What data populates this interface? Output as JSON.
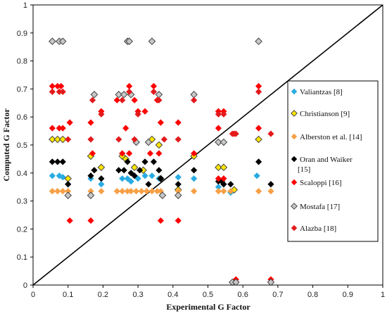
{
  "chart_data": {
    "type": "scatter",
    "xlabel": "Experimental G Factor",
    "ylabel": "Computed G Factor",
    "xlim": [
      0,
      1
    ],
    "ylim": [
      0,
      1
    ],
    "x_ticks": [
      "0",
      "0.1",
      "0.2",
      "0.3",
      "0.4",
      "0.5",
      "0.6",
      "0.7",
      "0.8",
      "0.9",
      "1"
    ],
    "y_ticks": [
      "0",
      "0.1",
      "0.2",
      "0.3",
      "0.4",
      "0.5",
      "0.6",
      "0.7",
      "0.8",
      "0.9",
      "1"
    ],
    "grid": false,
    "legend_position": "right",
    "reference_line": "y = x",
    "series": [
      {
        "name": "Valiantzas [8]",
        "marker": "diamond",
        "color": "#29abe2",
        "points": [
          [
            0.055,
            0.39
          ],
          [
            0.075,
            0.39
          ],
          [
            0.085,
            0.385
          ],
          [
            0.1,
            0.36
          ],
          [
            0.165,
            0.38
          ],
          [
            0.195,
            0.36
          ],
          [
            0.255,
            0.38
          ],
          [
            0.27,
            0.38
          ],
          [
            0.28,
            0.37
          ],
          [
            0.3,
            0.38
          ],
          [
            0.32,
            0.39
          ],
          [
            0.34,
            0.39
          ],
          [
            0.36,
            0.38
          ],
          [
            0.415,
            0.385
          ],
          [
            0.46,
            0.38
          ],
          [
            0.53,
            0.35
          ],
          [
            0.545,
            0.36
          ],
          [
            0.565,
            0.33
          ],
          [
            0.64,
            0.39
          ]
        ]
      },
      {
        "name": "Christianson [9]",
        "marker": "diamond",
        "color": "#ffe600",
        "points": [
          [
            0.055,
            0.52
          ],
          [
            0.07,
            0.52
          ],
          [
            0.085,
            0.52
          ],
          [
            0.1,
            0.38
          ],
          [
            0.165,
            0.46
          ],
          [
            0.195,
            0.42
          ],
          [
            0.255,
            0.46
          ],
          [
            0.265,
            0.45
          ],
          [
            0.29,
            0.42
          ],
          [
            0.315,
            0.41
          ],
          [
            0.34,
            0.52
          ],
          [
            0.36,
            0.5
          ],
          [
            0.365,
            0.38
          ],
          [
            0.415,
            0.34
          ],
          [
            0.46,
            0.46
          ],
          [
            0.53,
            0.42
          ],
          [
            0.545,
            0.42
          ],
          [
            0.575,
            0.34
          ],
          [
            0.645,
            0.52
          ]
        ]
      },
      {
        "name": "Alberston et al. [14]",
        "marker": "diamond",
        "color": "#f7a046",
        "points": [
          [
            0.055,
            0.335
          ],
          [
            0.07,
            0.335
          ],
          [
            0.085,
            0.335
          ],
          [
            0.1,
            0.335
          ],
          [
            0.165,
            0.335
          ],
          [
            0.195,
            0.335
          ],
          [
            0.24,
            0.335
          ],
          [
            0.255,
            0.335
          ],
          [
            0.27,
            0.335
          ],
          [
            0.28,
            0.335
          ],
          [
            0.295,
            0.335
          ],
          [
            0.31,
            0.335
          ],
          [
            0.325,
            0.335
          ],
          [
            0.34,
            0.335
          ],
          [
            0.355,
            0.335
          ],
          [
            0.365,
            0.335
          ],
          [
            0.415,
            0.335
          ],
          [
            0.46,
            0.335
          ],
          [
            0.53,
            0.335
          ],
          [
            0.545,
            0.335
          ],
          [
            0.565,
            0.335
          ],
          [
            0.645,
            0.335
          ],
          [
            0.68,
            0.335
          ]
        ]
      },
      {
        "name": "Oran and Waiker [15]",
        "marker": "diamond",
        "color": "#000000",
        "points": [
          [
            0.055,
            0.44
          ],
          [
            0.07,
            0.44
          ],
          [
            0.085,
            0.44
          ],
          [
            0.1,
            0.36
          ],
          [
            0.165,
            0.39
          ],
          [
            0.175,
            0.41
          ],
          [
            0.195,
            0.38
          ],
          [
            0.245,
            0.41
          ],
          [
            0.26,
            0.41
          ],
          [
            0.27,
            0.44
          ],
          [
            0.28,
            0.4
          ],
          [
            0.29,
            0.39
          ],
          [
            0.305,
            0.41
          ],
          [
            0.32,
            0.44
          ],
          [
            0.33,
            0.36
          ],
          [
            0.345,
            0.44
          ],
          [
            0.36,
            0.41
          ],
          [
            0.365,
            0.38
          ],
          [
            0.415,
            0.36
          ],
          [
            0.46,
            0.41
          ],
          [
            0.53,
            0.37
          ],
          [
            0.54,
            0.37
          ],
          [
            0.545,
            0.36
          ],
          [
            0.565,
            0.36
          ],
          [
            0.645,
            0.44
          ],
          [
            0.68,
            0.36
          ]
        ]
      },
      {
        "name": "Scaloppi [16]",
        "marker": "diamond",
        "color": "#ff0000",
        "points": [
          [
            0.055,
            0.71
          ],
          [
            0.07,
            0.71
          ],
          [
            0.08,
            0.71
          ],
          [
            0.055,
            0.56
          ],
          [
            0.075,
            0.56
          ],
          [
            0.085,
            0.56
          ],
          [
            0.105,
            0.58
          ],
          [
            0.105,
            0.23
          ],
          [
            0.165,
            0.58
          ],
          [
            0.165,
            0.23
          ],
          [
            0.17,
            0.47
          ],
          [
            0.195,
            0.62
          ],
          [
            0.24,
            0.66
          ],
          [
            0.255,
            0.47
          ],
          [
            0.265,
            0.56
          ],
          [
            0.275,
            0.71
          ],
          [
            0.275,
            0.47
          ],
          [
            0.29,
            0.66
          ],
          [
            0.3,
            0.62
          ],
          [
            0.32,
            0.62
          ],
          [
            0.335,
            0.47
          ],
          [
            0.345,
            0.71
          ],
          [
            0.355,
            0.66
          ],
          [
            0.36,
            0.47
          ],
          [
            0.365,
            0.58
          ],
          [
            0.365,
            0.23
          ],
          [
            0.415,
            0.58
          ],
          [
            0.415,
            0.23
          ],
          [
            0.46,
            0.47
          ],
          [
            0.53,
            0.62
          ],
          [
            0.53,
            0.56
          ],
          [
            0.545,
            0.62
          ],
          [
            0.53,
            0.38
          ],
          [
            0.545,
            0.38
          ],
          [
            0.575,
            0.54
          ],
          [
            0.58,
            0.02
          ],
          [
            0.645,
            0.71
          ],
          [
            0.645,
            0.56
          ],
          [
            0.68,
            0.02
          ]
        ]
      },
      {
        "name": "Mostafa [17]",
        "marker": "diamond-hollow",
        "color": "#c8c8c8",
        "points": [
          [
            0.055,
            0.87
          ],
          [
            0.075,
            0.87
          ],
          [
            0.085,
            0.87
          ],
          [
            0.1,
            0.32
          ],
          [
            0.165,
            0.32
          ],
          [
            0.175,
            0.68
          ],
          [
            0.245,
            0.68
          ],
          [
            0.26,
            0.68
          ],
          [
            0.27,
            0.87
          ],
          [
            0.275,
            0.87
          ],
          [
            0.28,
            0.68
          ],
          [
            0.295,
            0.51
          ],
          [
            0.33,
            0.51
          ],
          [
            0.34,
            0.87
          ],
          [
            0.36,
            0.68
          ],
          [
            0.37,
            0.32
          ],
          [
            0.415,
            0.32
          ],
          [
            0.46,
            0.68
          ],
          [
            0.53,
            0.51
          ],
          [
            0.545,
            0.51
          ],
          [
            0.57,
            0.01
          ],
          [
            0.58,
            0.01
          ],
          [
            0.645,
            0.87
          ],
          [
            0.68,
            0.01
          ]
        ]
      },
      {
        "name": "Alazba [18]",
        "marker": "diamond",
        "color": "#e31a1c",
        "points": [
          [
            0.055,
            0.69
          ],
          [
            0.075,
            0.69
          ],
          [
            0.085,
            0.69
          ],
          [
            0.1,
            0.52
          ],
          [
            0.165,
            0.52
          ],
          [
            0.17,
            0.66
          ],
          [
            0.195,
            0.61
          ],
          [
            0.245,
            0.52
          ],
          [
            0.255,
            0.66
          ],
          [
            0.275,
            0.69
          ],
          [
            0.29,
            0.52
          ],
          [
            0.3,
            0.61
          ],
          [
            0.345,
            0.69
          ],
          [
            0.36,
            0.66
          ],
          [
            0.375,
            0.52
          ],
          [
            0.415,
            0.52
          ],
          [
            0.46,
            0.66
          ],
          [
            0.53,
            0.61
          ],
          [
            0.545,
            0.61
          ],
          [
            0.57,
            0.54
          ],
          [
            0.58,
            0.54
          ],
          [
            0.645,
            0.69
          ],
          [
            0.68,
            0.54
          ]
        ]
      }
    ]
  }
}
